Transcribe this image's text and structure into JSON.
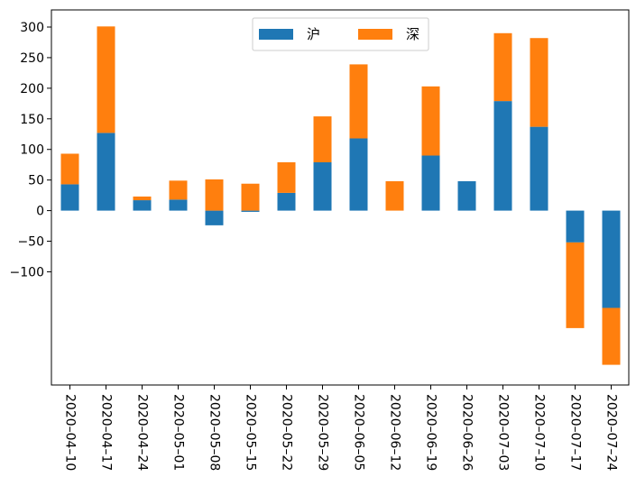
{
  "chart_data": {
    "type": "bar",
    "stacked": true,
    "categories": [
      "2020-04-10",
      "2020-04-17",
      "2020-04-24",
      "2020-05-01",
      "2020-05-08",
      "2020-05-15",
      "2020-05-22",
      "2020-05-29",
      "2020-06-05",
      "2020-06-12",
      "2020-06-19",
      "2020-06-26",
      "2020-07-03",
      "2020-07-10",
      "2020-07-17",
      "2020-07-24"
    ],
    "series": [
      {
        "name": "沪",
        "color": "#1f77b4",
        "values": [
          43,
          127,
          17,
          18,
          -24,
          -2,
          29,
          79,
          118,
          0,
          90,
          48,
          179,
          137,
          -52,
          -159
        ]
      },
      {
        "name": "深",
        "color": "#ff7f0e",
        "values": [
          50,
          174,
          6,
          31,
          51,
          44,
          50,
          75,
          121,
          48,
          113,
          0,
          111,
          145,
          -140,
          -93
        ]
      }
    ],
    "yticks": [
      300,
      250,
      200,
      150,
      100,
      50,
      0,
      -50,
      -100
    ],
    "ylim": [
      -285,
      328
    ],
    "legend_position": "top-center",
    "grid": false
  }
}
